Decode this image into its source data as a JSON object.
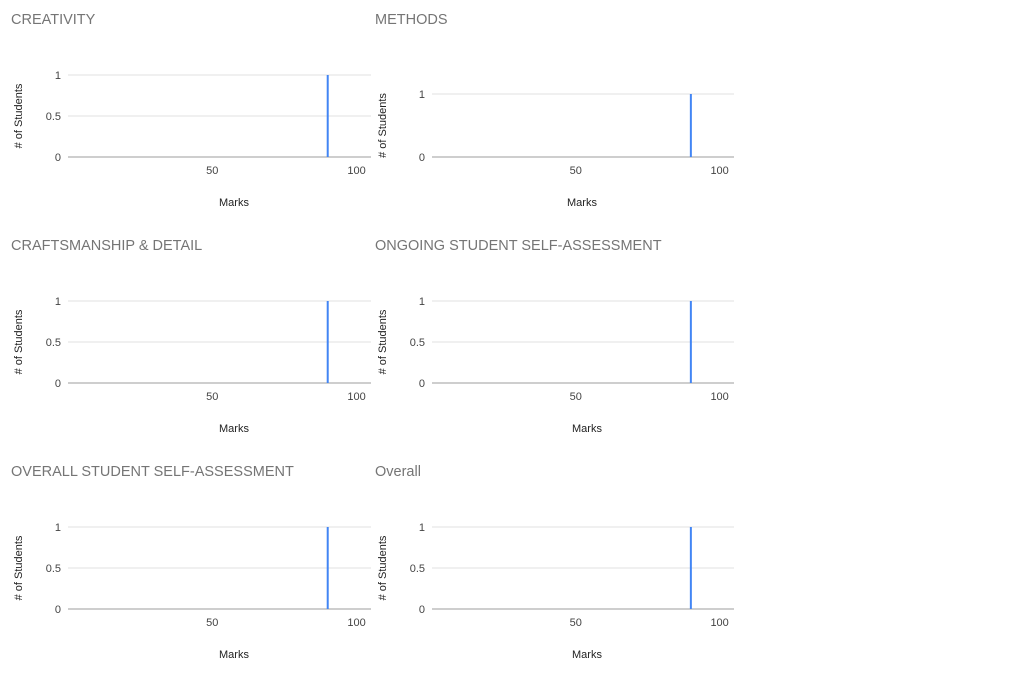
{
  "colors": {
    "bar": "#4285f4",
    "grid": "#e0e0e0",
    "baseline": "#9e9e9e"
  },
  "chart_data": [
    {
      "type": "bar",
      "title": "CREATIVITY",
      "xlabel": "Marks",
      "ylabel": "# of Students",
      "xlim": [
        0,
        105
      ],
      "ylim": [
        0,
        1
      ],
      "xticks": [
        50,
        100
      ],
      "yticks": [
        0,
        0.5,
        1
      ],
      "x": [
        90
      ],
      "values": [
        1
      ],
      "grid": true
    },
    {
      "type": "bar",
      "title": "METHODS",
      "xlabel": "Marks",
      "ylabel": "# of Students",
      "xlim": [
        0,
        105
      ],
      "ylim": [
        0,
        1
      ],
      "xticks": [
        50,
        100
      ],
      "yticks": [
        0,
        1
      ],
      "x": [
        90
      ],
      "values": [
        1
      ],
      "grid": true
    },
    {
      "type": "bar",
      "title": "CRAFTSMANSHIP & DETAIL",
      "xlabel": "Marks",
      "ylabel": "# of Students",
      "xlim": [
        0,
        105
      ],
      "ylim": [
        0,
        1
      ],
      "xticks": [
        50,
        100
      ],
      "yticks": [
        0,
        0.5,
        1
      ],
      "x": [
        90
      ],
      "values": [
        1
      ],
      "grid": true
    },
    {
      "type": "bar",
      "title": "ONGOING STUDENT SELF-ASSESSMENT",
      "xlabel": "Marks",
      "ylabel": "# of Students",
      "xlim": [
        0,
        105
      ],
      "ylim": [
        0,
        1
      ],
      "xticks": [
        50,
        100
      ],
      "yticks": [
        0,
        0.5,
        1
      ],
      "x": [
        90
      ],
      "values": [
        1
      ],
      "grid": true
    },
    {
      "type": "bar",
      "title": "OVERALL STUDENT SELF-ASSESSMENT",
      "xlabel": "Marks",
      "ylabel": "# of Students",
      "xlim": [
        0,
        105
      ],
      "ylim": [
        0,
        1
      ],
      "xticks": [
        50,
        100
      ],
      "yticks": [
        0,
        0.5,
        1
      ],
      "x": [
        90
      ],
      "values": [
        1
      ],
      "grid": true
    },
    {
      "type": "bar",
      "title": "Overall",
      "xlabel": "Marks",
      "ylabel": "# of Students",
      "xlim": [
        0,
        105
      ],
      "ylim": [
        0,
        1
      ],
      "xticks": [
        50,
        100
      ],
      "yticks": [
        0,
        0.5,
        1
      ],
      "x": [
        90
      ],
      "values": [
        1
      ],
      "grid": true
    }
  ]
}
